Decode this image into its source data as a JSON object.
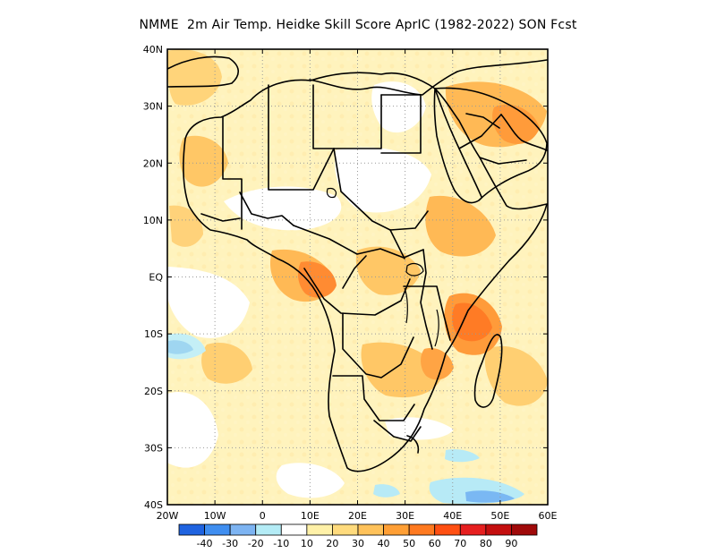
{
  "title": "NMME  2m Air Temp. Heidke Skill Score AprIC (1982-2022) SON Fcst",
  "map": {
    "region": "Africa",
    "lon_range": [
      -20,
      60
    ],
    "lat_range": [
      -40,
      40
    ],
    "grid": "dotted",
    "lon_ticks": [
      "20W",
      "10W",
      "0",
      "10E",
      "20E",
      "30E",
      "40E",
      "50E",
      "60E"
    ],
    "lat_ticks": [
      "40N",
      "30N",
      "20N",
      "10N",
      "EQ",
      "10S",
      "20S",
      "30S",
      "40S"
    ]
  },
  "colorbar": {
    "labels": [
      "-40",
      "-30",
      "-20",
      "-10",
      "10",
      "20",
      "30",
      "40",
      "50",
      "60",
      "70",
      "80",
      "90"
    ],
    "colors": [
      "#1f63e0",
      "#3f8ef0",
      "#7db4f2",
      "#b4ecf6",
      "#ffffff",
      "#fff1a8",
      "#ffdb7d",
      "#ffc25a",
      "#ff9f35",
      "#ff7a20",
      "#ff4f12",
      "#e61f1f",
      "#c40f0f",
      "#a00a0a"
    ]
  },
  "chart_data": {
    "type": "heatmap",
    "title": "NMME  2m Air Temp. Heidke Skill Score AprIC (1982-2022) SON Fcst",
    "x": [
      "20W",
      "10W",
      "0",
      "10E",
      "20E",
      "30E",
      "40E",
      "50E",
      "60E"
    ],
    "y": [
      "40S",
      "30S",
      "20S",
      "10S",
      "EQ",
      "10N",
      "20N",
      "30N",
      "40N"
    ],
    "legend_levels": [
      -40,
      -30,
      -20,
      -10,
      10,
      20,
      30,
      40,
      50,
      60,
      70,
      80,
      90
    ],
    "features": [
      {
        "name": "high_skill_east_africa",
        "lon": 40,
        "lat": -5,
        "value": 60
      },
      {
        "name": "high_skill_arabian_gulf",
        "lon": 50,
        "lat": 25,
        "value": 60
      },
      {
        "name": "high_skill_central_africa",
        "lon": 12,
        "lat": -2,
        "value": 50
      },
      {
        "name": "low_skill_southwest_atlantic",
        "lon": -17,
        "lat": -12,
        "value": -20
      },
      {
        "name": "low_skill_southern_ocean",
        "lon": 46,
        "lat": -38,
        "value": -20
      }
    ]
  }
}
